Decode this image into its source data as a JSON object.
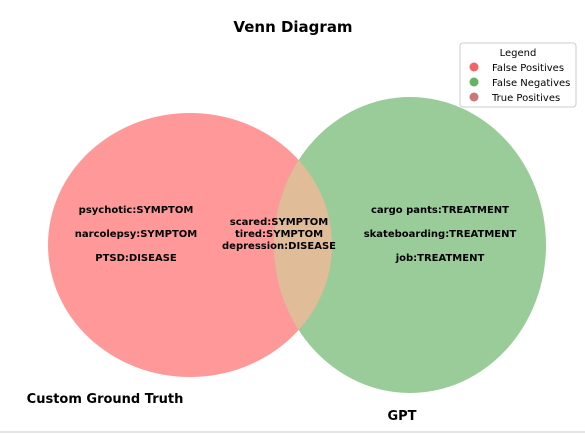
{
  "title": "Venn Diagram",
  "colors": {
    "left_only": "#ff9999",
    "right_only": "#99cc99",
    "overlap": "#e0bc99",
    "legend_false_positives": "#ee6666",
    "legend_false_negatives": "#66b366",
    "legend_true_positives": "#cc7777"
  },
  "sets": {
    "left": {
      "label": "Custom Ground Truth",
      "items": [
        "psychotic:SYMPTOM",
        "narcolepsy:SYMPTOM",
        "PTSD:DISEASE"
      ]
    },
    "right": {
      "label": "GPT",
      "items": [
        "cargo pants:TREATMENT",
        "skateboarding:TREATMENT",
        "job:TREATMENT"
      ]
    },
    "overlap": {
      "items": [
        "scared:SYMPTOM",
        "tired:SYMPTOM",
        "depression:DISEASE"
      ]
    }
  },
  "legend": {
    "title": "Legend",
    "entries": [
      {
        "label": "False Positives",
        "color_key": "legend_false_positives"
      },
      {
        "label": "False Negatives",
        "color_key": "legend_false_negatives"
      },
      {
        "label": "True Positives",
        "color_key": "legend_true_positives"
      }
    ]
  }
}
